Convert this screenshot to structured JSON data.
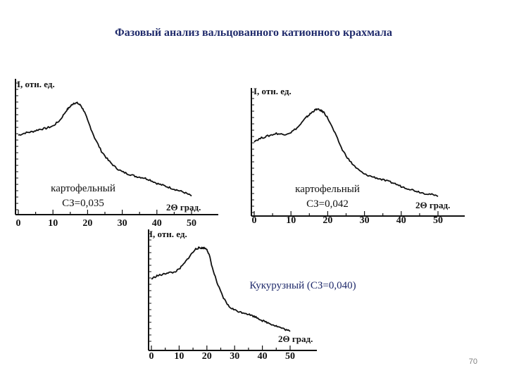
{
  "slide": {
    "title": "Фазовый анализ вальцованного катионного крахмала",
    "page_number": "70"
  },
  "chart_data": [
    {
      "type": "line",
      "ylabel": "I, отн. ед.",
      "xlabel": "2Θ град.",
      "xticks": [
        0,
        10,
        20,
        30,
        40,
        50
      ],
      "xlim": [
        0,
        52
      ],
      "ylim": [
        0,
        100
      ],
      "annotation_lines": [
        "картофельный",
        "СЗ=0,035"
      ],
      "x": [
        0,
        2,
        4,
        6,
        8,
        10,
        12,
        14,
        15,
        16,
        17,
        18,
        19,
        20,
        22,
        24,
        26,
        28,
        30,
        32,
        34,
        36,
        38,
        40,
        42,
        44,
        46,
        48,
        50
      ],
      "y": [
        57,
        59,
        60,
        62,
        63,
        65,
        70,
        79,
        82,
        85,
        85,
        83,
        78,
        70,
        55,
        43,
        35,
        29,
        25,
        23,
        21,
        20,
        18,
        15,
        13,
        11,
        9,
        7,
        4
      ]
    },
    {
      "type": "line",
      "ylabel": "I, отн. ед.",
      "xlabel": "2Θ град.",
      "xticks": [
        0,
        10,
        20,
        30,
        40,
        50
      ],
      "xlim": [
        0,
        52
      ],
      "ylim": [
        0,
        100
      ],
      "annotation_lines": [
        "картофельный",
        "СЗ=0,042"
      ],
      "x": [
        0,
        2,
        4,
        6,
        8,
        10,
        12,
        14,
        15,
        16,
        17,
        18,
        19,
        20,
        22,
        24,
        26,
        28,
        30,
        32,
        34,
        36,
        38,
        40,
        42,
        44,
        46,
        48,
        50
      ],
      "y": [
        55,
        58,
        60,
        62,
        61,
        63,
        68,
        76,
        79,
        82,
        84,
        83,
        81,
        76,
        62,
        47,
        37,
        30,
        25,
        23,
        21,
        19,
        17,
        14,
        12,
        10,
        8,
        7,
        5
      ]
    },
    {
      "type": "line",
      "ylabel": "I, отн. ед.",
      "xlabel": "2Θ град.",
      "xticks": [
        0,
        10,
        20,
        30,
        40,
        50
      ],
      "xlim": [
        0,
        52
      ],
      "ylim": [
        0,
        100
      ],
      "annotation_lines": [
        "Кукурузный  (СЗ=0,040)"
      ],
      "x": [
        0,
        2,
        4,
        6,
        8,
        10,
        12,
        14,
        16,
        17,
        18,
        19,
        20,
        21,
        22,
        24,
        26,
        28,
        30,
        32,
        34,
        36,
        38,
        40,
        42,
        44,
        46,
        48,
        50
      ],
      "y": [
        55,
        58,
        59,
        61,
        61,
        64,
        70,
        77,
        83,
        84,
        84,
        84,
        83,
        76,
        65,
        49,
        37,
        29,
        26,
        24,
        23,
        21,
        19,
        16,
        14,
        12,
        10,
        8,
        6
      ]
    }
  ]
}
